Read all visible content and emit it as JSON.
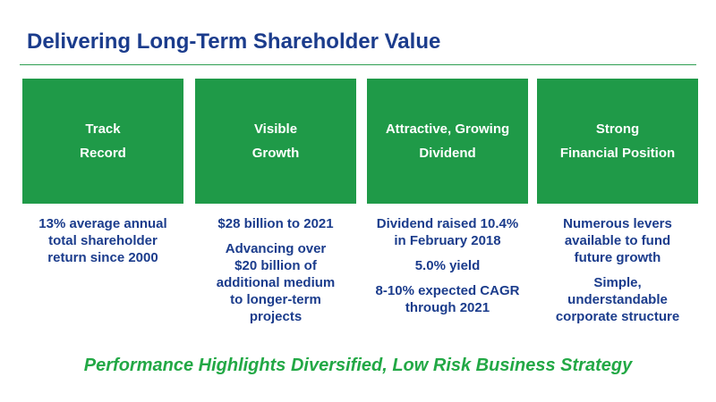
{
  "title": "Delivering Long-Term Shareholder Value",
  "columns": [
    {
      "label": [
        "Track",
        "Record"
      ],
      "paragraphs": [
        [
          "13% average annual",
          "total shareholder",
          "return since 2000"
        ]
      ]
    },
    {
      "label": [
        "Visible",
        "Growth"
      ],
      "paragraphs": [
        [
          "$28 billion to 2021"
        ],
        [
          "Advancing over",
          "$20 billion of",
          "additional medium",
          "to longer-term",
          "projects"
        ]
      ]
    },
    {
      "label": [
        "Attractive, Growing",
        "Dividend"
      ],
      "paragraphs": [
        [
          "Dividend raised 10.4%",
          "in February 2018"
        ],
        [
          "5.0% yield"
        ],
        [
          "8-10% expected CAGR",
          "through 2021"
        ]
      ]
    },
    {
      "label": [
        "Strong",
        "Financial Position"
      ],
      "paragraphs": [
        [
          "Numerous levers",
          "available to fund",
          "future growth"
        ],
        [
          "Simple,",
          "understandable",
          "corporate structure"
        ]
      ]
    }
  ],
  "tagline": "Performance Highlights Diversified, Low Risk Business Strategy"
}
